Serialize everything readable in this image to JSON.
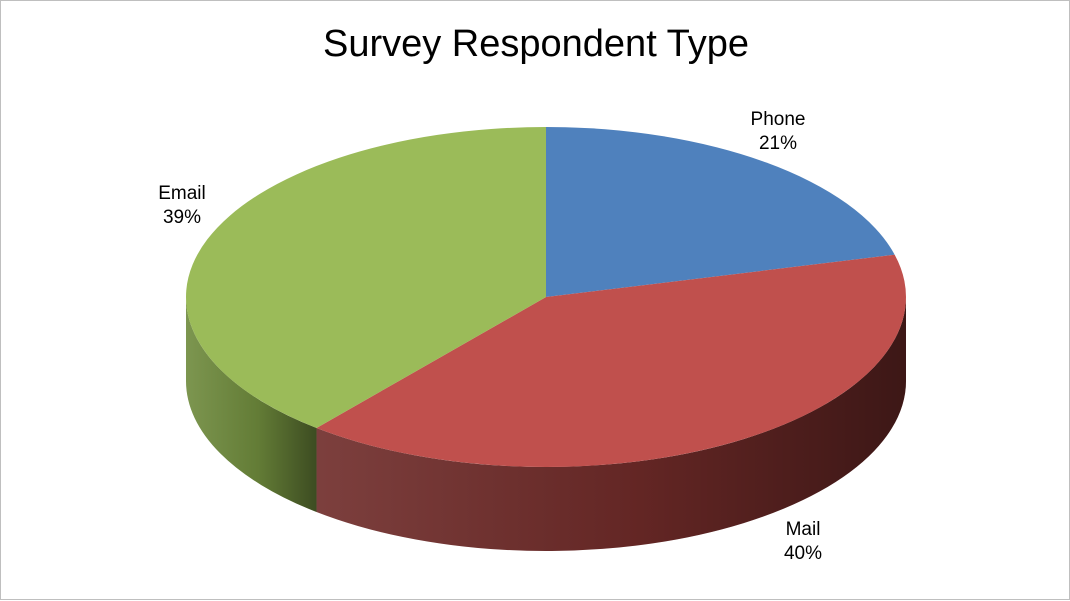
{
  "chart_data": {
    "type": "pie",
    "title": "Survey Respondent Type",
    "categories": [
      "Phone",
      "Mail",
      "Email"
    ],
    "values": [
      21,
      40,
      39
    ],
    "value_labels": [
      "21%",
      "40%",
      "39%"
    ],
    "colors": [
      "#4f81bd",
      "#c0504d",
      "#9bbb59"
    ],
    "side_colors": [
      "#2f4f7a",
      "#6e2a28",
      "#6e8a3c"
    ],
    "legend": "none",
    "style": "3d"
  }
}
